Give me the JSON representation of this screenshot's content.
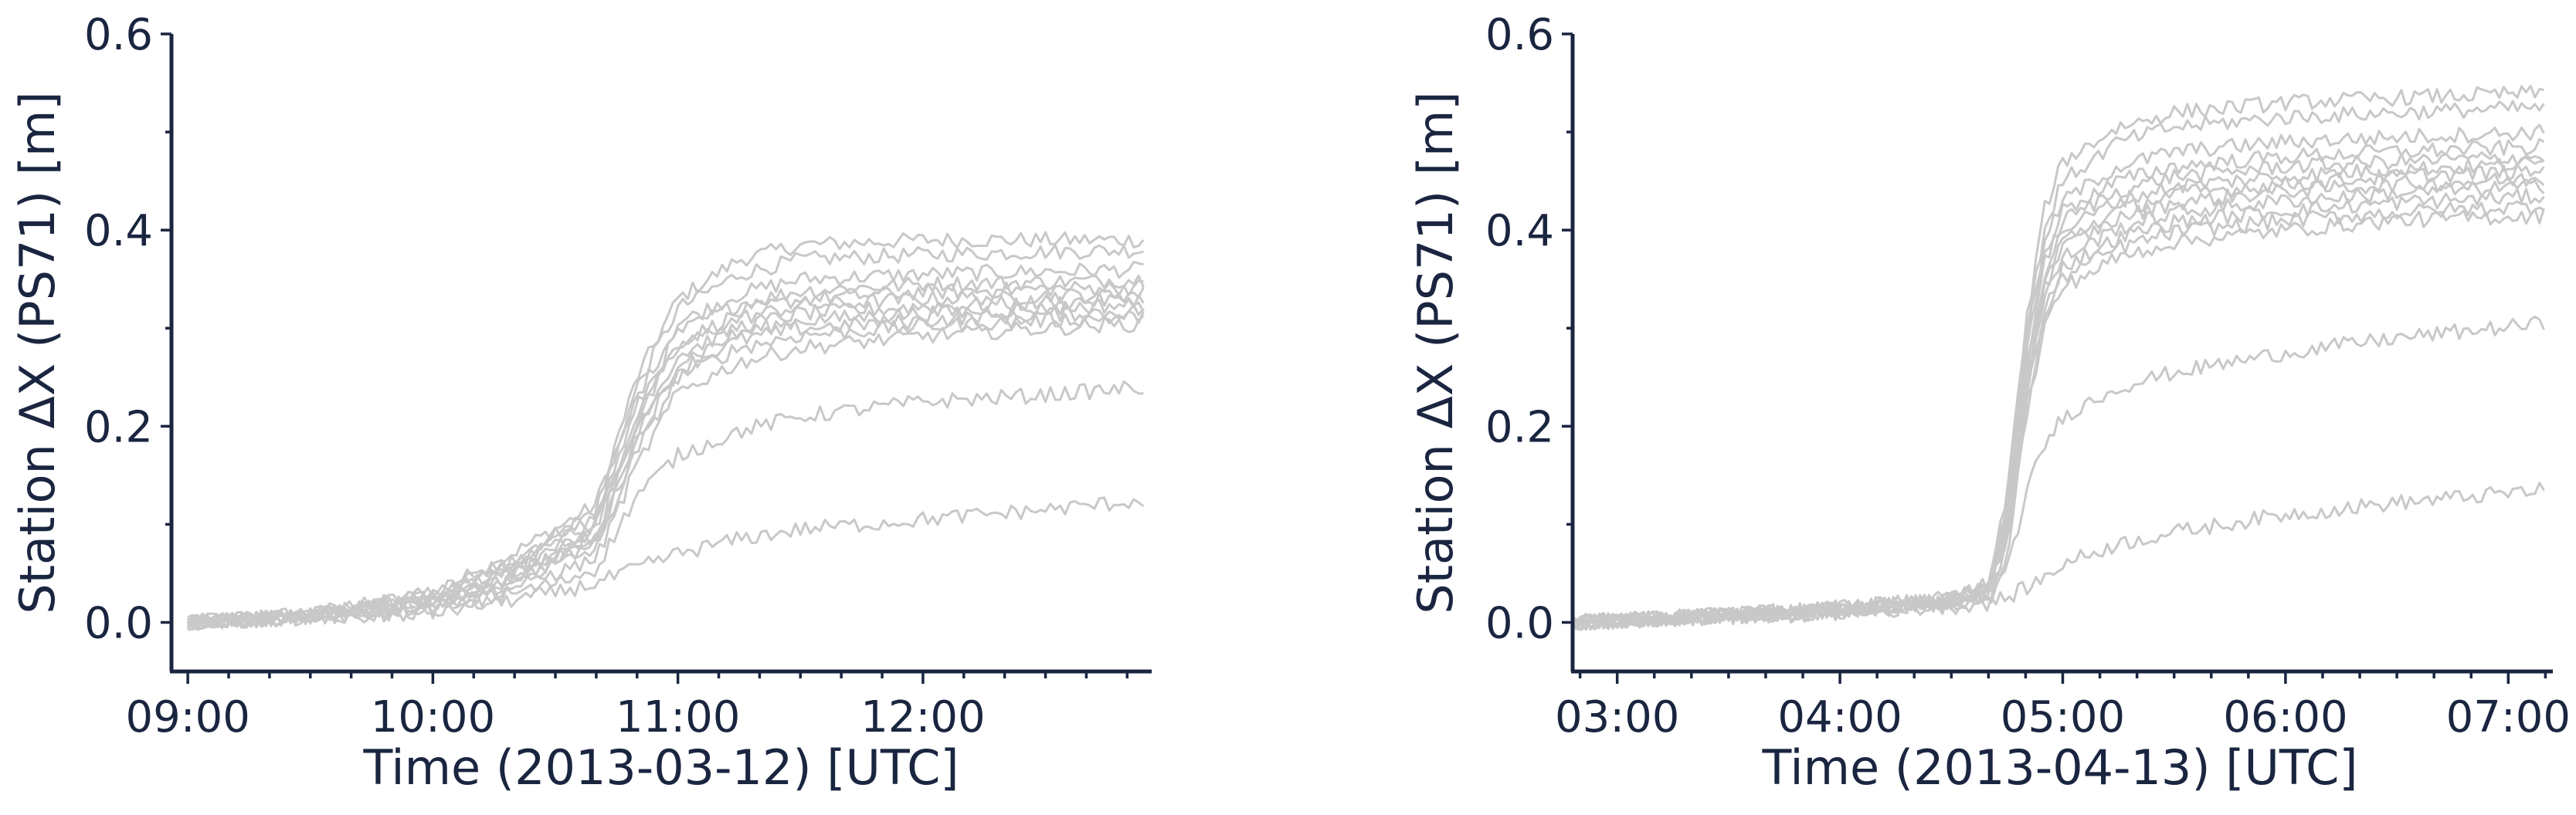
{
  "colors": {
    "axis": "#1a2540",
    "trace": "#c8c8c8",
    "background": "#ffffff"
  },
  "chart_data": [
    {
      "type": "line",
      "title": "",
      "xlabel": "Time (2013-03-12) [UTC]",
      "ylabel": "Station ΔX (PS71) [m]",
      "xlim": [
        "08:56",
        "12:56"
      ],
      "ylim": [
        -0.05,
        0.6
      ],
      "xticks": [
        "09:00",
        "10:00",
        "11:00",
        "12:00"
      ],
      "yticks": [
        "0.0",
        "0.2",
        "0.4",
        "0.6"
      ],
      "grid": false,
      "legend": "none",
      "series_color": "#c8c8c8",
      "x": [
        "09:00",
        "09:30",
        "10:00",
        "10:15",
        "10:30",
        "10:40",
        "10:50",
        "11:00",
        "11:15",
        "11:30",
        "12:00",
        "12:30",
        "12:55"
      ],
      "series": [
        {
          "values": [
            0.0,
            0.008,
            0.03,
            0.06,
            0.095,
            0.12,
            0.25,
            0.33,
            0.37,
            0.385,
            0.39,
            0.39,
            0.39
          ]
        },
        {
          "values": [
            0.0,
            0.008,
            0.03,
            0.055,
            0.09,
            0.115,
            0.24,
            0.32,
            0.355,
            0.37,
            0.375,
            0.378,
            0.38
          ]
        },
        {
          "values": [
            0.0,
            0.008,
            0.025,
            0.05,
            0.085,
            0.11,
            0.23,
            0.305,
            0.335,
            0.35,
            0.355,
            0.358,
            0.36
          ]
        },
        {
          "values": [
            0.0,
            0.007,
            0.025,
            0.05,
            0.08,
            0.105,
            0.22,
            0.295,
            0.325,
            0.338,
            0.345,
            0.347,
            0.35
          ]
        },
        {
          "values": [
            0.0,
            0.007,
            0.025,
            0.045,
            0.075,
            0.1,
            0.215,
            0.285,
            0.315,
            0.33,
            0.337,
            0.34,
            0.342
          ]
        },
        {
          "values": [
            0.0,
            0.007,
            0.022,
            0.045,
            0.072,
            0.095,
            0.205,
            0.28,
            0.31,
            0.323,
            0.33,
            0.333,
            0.335
          ]
        },
        {
          "values": [
            0.0,
            0.006,
            0.022,
            0.04,
            0.07,
            0.09,
            0.2,
            0.272,
            0.302,
            0.315,
            0.322,
            0.326,
            0.33
          ]
        },
        {
          "values": [
            0.0,
            0.006,
            0.02,
            0.04,
            0.065,
            0.085,
            0.19,
            0.265,
            0.295,
            0.308,
            0.315,
            0.32,
            0.325
          ]
        },
        {
          "values": [
            0.0,
            0.006,
            0.02,
            0.038,
            0.062,
            0.08,
            0.185,
            0.258,
            0.288,
            0.3,
            0.308,
            0.314,
            0.318
          ]
        },
        {
          "values": [
            0.0,
            0.005,
            0.018,
            0.035,
            0.058,
            0.075,
            0.175,
            0.25,
            0.28,
            0.293,
            0.302,
            0.308,
            0.312
          ]
        },
        {
          "values": [
            0.0,
            0.005,
            0.016,
            0.03,
            0.05,
            0.065,
            0.16,
            0.235,
            0.265,
            0.28,
            0.292,
            0.3,
            0.305
          ]
        },
        {
          "values": [
            0.0,
            0.004,
            0.012,
            0.025,
            0.04,
            0.055,
            0.13,
            0.17,
            0.195,
            0.21,
            0.225,
            0.232,
            0.24
          ]
        },
        {
          "values": [
            0.0,
            0.003,
            0.01,
            0.02,
            0.03,
            0.04,
            0.055,
            0.07,
            0.085,
            0.095,
            0.105,
            0.115,
            0.125
          ]
        }
      ]
    },
    {
      "type": "line",
      "title": "",
      "xlabel": "Time (2013-04-13) [UTC]",
      "ylabel": "Station ΔX (PS71) [m]",
      "xlim": [
        "02:48",
        "07:12"
      ],
      "ylim": [
        -0.05,
        0.6
      ],
      "xticks": [
        "03:00",
        "04:00",
        "05:00",
        "06:00",
        "07:00"
      ],
      "yticks": [
        "0.0",
        "0.2",
        "0.4",
        "0.6"
      ],
      "grid": false,
      "legend": "none",
      "series_color": "#c8c8c8",
      "x": [
        "02:48",
        "03:30",
        "04:00",
        "04:30",
        "04:40",
        "04:45",
        "04:50",
        "04:55",
        "05:00",
        "05:15",
        "05:30",
        "06:00",
        "06:30",
        "07:10"
      ],
      "series": [
        {
          "values": [
            0.0,
            0.008,
            0.015,
            0.025,
            0.04,
            0.13,
            0.3,
            0.42,
            0.47,
            0.505,
            0.52,
            0.53,
            0.535,
            0.54
          ]
        },
        {
          "values": [
            0.0,
            0.008,
            0.015,
            0.025,
            0.038,
            0.12,
            0.29,
            0.4,
            0.45,
            0.49,
            0.505,
            0.515,
            0.52,
            0.525
          ]
        },
        {
          "values": [
            0.0,
            0.008,
            0.015,
            0.024,
            0.036,
            0.115,
            0.28,
            0.385,
            0.43,
            0.465,
            0.48,
            0.49,
            0.495,
            0.5
          ]
        },
        {
          "values": [
            0.0,
            0.008,
            0.014,
            0.024,
            0.035,
            0.11,
            0.27,
            0.375,
            0.42,
            0.45,
            0.465,
            0.475,
            0.48,
            0.485
          ]
        },
        {
          "values": [
            0.0,
            0.007,
            0.014,
            0.023,
            0.034,
            0.105,
            0.26,
            0.365,
            0.41,
            0.44,
            0.455,
            0.465,
            0.47,
            0.475
          ]
        },
        {
          "values": [
            0.0,
            0.007,
            0.014,
            0.023,
            0.033,
            0.1,
            0.255,
            0.355,
            0.4,
            0.43,
            0.445,
            0.455,
            0.462,
            0.468
          ]
        },
        {
          "values": [
            0.0,
            0.007,
            0.013,
            0.022,
            0.032,
            0.095,
            0.245,
            0.345,
            0.39,
            0.42,
            0.437,
            0.447,
            0.455,
            0.46
          ]
        },
        {
          "values": [
            0.0,
            0.007,
            0.013,
            0.022,
            0.031,
            0.09,
            0.24,
            0.34,
            0.382,
            0.412,
            0.428,
            0.44,
            0.447,
            0.452
          ]
        },
        {
          "values": [
            0.0,
            0.006,
            0.013,
            0.021,
            0.03,
            0.085,
            0.23,
            0.33,
            0.372,
            0.402,
            0.418,
            0.43,
            0.438,
            0.445
          ]
        },
        {
          "values": [
            0.0,
            0.006,
            0.012,
            0.021,
            0.029,
            0.08,
            0.222,
            0.32,
            0.362,
            0.392,
            0.408,
            0.42,
            0.428,
            0.435
          ]
        },
        {
          "values": [
            0.0,
            0.006,
            0.012,
            0.02,
            0.028,
            0.075,
            0.215,
            0.31,
            0.352,
            0.382,
            0.398,
            0.41,
            0.418,
            0.425
          ]
        },
        {
          "values": [
            0.0,
            0.006,
            0.012,
            0.02,
            0.027,
            0.07,
            0.205,
            0.3,
            0.342,
            0.372,
            0.388,
            0.4,
            0.41,
            0.415
          ]
        },
        {
          "values": [
            0.0,
            0.005,
            0.01,
            0.018,
            0.024,
            0.05,
            0.13,
            0.18,
            0.21,
            0.24,
            0.255,
            0.275,
            0.29,
            0.305
          ]
        },
        {
          "values": [
            0.0,
            0.005,
            0.01,
            0.016,
            0.02,
            0.025,
            0.035,
            0.045,
            0.06,
            0.08,
            0.092,
            0.11,
            0.122,
            0.135
          ]
        }
      ]
    }
  ]
}
